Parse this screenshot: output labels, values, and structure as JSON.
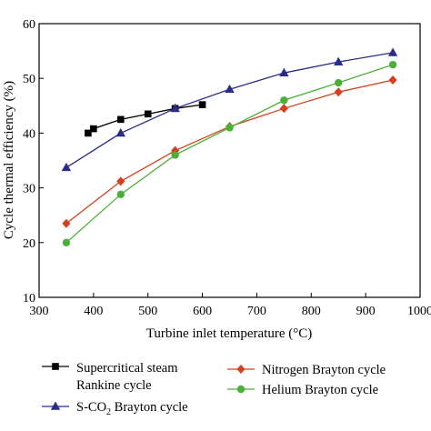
{
  "chart_data": {
    "type": "line",
    "xlabel": "Turbine inlet temperature (°C)",
    "ylabel": "Cycle thermal efficiency (%)",
    "xlim": [
      300,
      1000
    ],
    "ylim": [
      10,
      60
    ],
    "xticks": [
      "300",
      "400",
      "500",
      "600",
      "700",
      "800",
      "900",
      "1000"
    ],
    "yticks": [
      "10",
      "20",
      "30",
      "40",
      "50",
      "60"
    ],
    "grid": false,
    "legend_position": "bottom",
    "series": [
      {
        "name_lines": [
          "Supercritical steam",
          "Rankine cycle"
        ],
        "marker": "square",
        "color": "#000000",
        "x": [
          390,
          400,
          450,
          500,
          550,
          600
        ],
        "y": [
          40.0,
          40.8,
          42.5,
          43.5,
          44.5,
          45.2
        ]
      },
      {
        "name_parts": [
          "S-CO",
          "2",
          " Brayton cycle"
        ],
        "marker": "triangle",
        "color": "#2b2b8c",
        "x": [
          350,
          450,
          550,
          650,
          750,
          850,
          950
        ],
        "y": [
          33.7,
          40.0,
          44.5,
          48.0,
          51.0,
          53.0,
          54.7
        ]
      },
      {
        "name": "Nitrogen Brayton cycle",
        "marker": "diamond",
        "color": "#d4401c",
        "x": [
          350,
          450,
          550,
          650,
          750,
          850,
          950
        ],
        "y": [
          23.5,
          31.2,
          36.8,
          41.2,
          44.5,
          47.5,
          49.7
        ]
      },
      {
        "name": "Helium Brayton cycle",
        "marker": "circle",
        "color": "#4caf3a",
        "x": [
          350,
          450,
          550,
          650,
          750,
          850,
          950
        ],
        "y": [
          20.0,
          28.8,
          36.0,
          41.0,
          46.0,
          49.2,
          52.5
        ]
      }
    ]
  }
}
